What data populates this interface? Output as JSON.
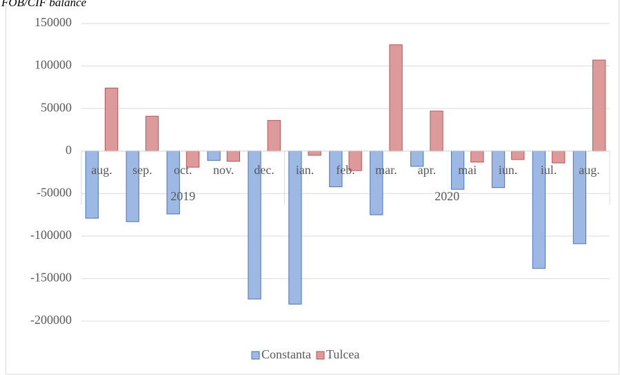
{
  "chart_data": {
    "type": "bar",
    "title": "FOB/CIF balance",
    "groups": [
      {
        "name": "2019",
        "categories": [
          "aug.",
          "sep.",
          "oct.",
          "nov.",
          "dec."
        ]
      },
      {
        "name": "2020",
        "categories": [
          "ian.",
          "feb.",
          "mar.",
          "apr.",
          "mai",
          "iun.",
          "iul.",
          "aug."
        ]
      }
    ],
    "series": [
      {
        "name": "Constanta",
        "color": "#9db8e2",
        "values": [
          -79000,
          -83000,
          -74000,
          -11000,
          -174000,
          -180000,
          -42000,
          -75000,
          -18000,
          -45000,
          -43000,
          -138000,
          -109000
        ]
      },
      {
        "name": "Tulcea",
        "color": "#dc9a9a",
        "values": [
          74000,
          41000,
          -19000,
          -12000,
          36000,
          -5000,
          -23000,
          125000,
          47000,
          -13000,
          -10000,
          -14000,
          107000
        ]
      }
    ],
    "ylim": [
      -200000,
      150000
    ],
    "yticks": [
      -200000,
      -150000,
      -100000,
      -50000,
      0,
      50000,
      100000,
      150000
    ],
    "grid": true,
    "legend": "bottom"
  }
}
